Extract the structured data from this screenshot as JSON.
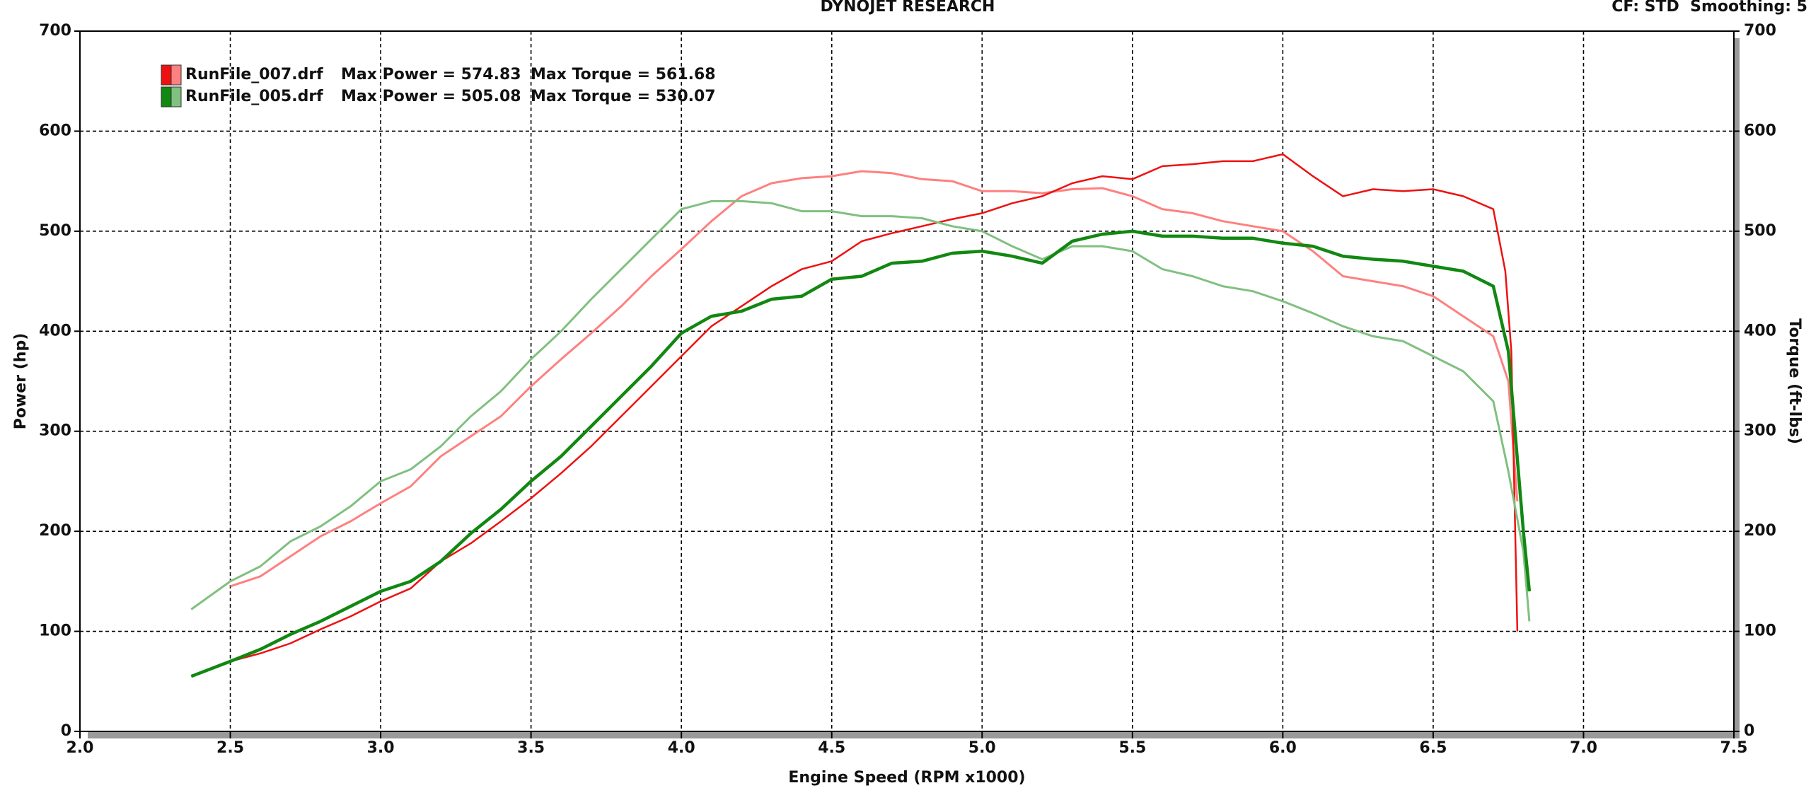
{
  "chart_data": {
    "type": "line",
    "title": "DYNOJET RESEARCH",
    "subtitle": "CF: STD  Smoothing: 5",
    "x_label": "Engine Speed (RPM x1000)",
    "y_label": "Power (hp)",
    "y2_label": "Torque (ft-lbs)",
    "xlim": [
      2.0,
      7.5
    ],
    "xticks": [
      {
        "value": 2,
        "label": "2.0"
      },
      {
        "value": 2.5,
        "label": "2.5"
      },
      {
        "value": 3,
        "label": "3.0"
      },
      {
        "value": 3.5,
        "label": "3.5"
      },
      {
        "value": 4,
        "label": "4.0"
      },
      {
        "value": 4.5,
        "label": "4.5"
      },
      {
        "value": 5,
        "label": "5.0"
      },
      {
        "value": 5.5,
        "label": "5.5"
      },
      {
        "value": 6,
        "label": "6.0"
      },
      {
        "value": 6.5,
        "label": "6.5"
      },
      {
        "value": 7,
        "label": "7.0"
      },
      {
        "value": 7.5,
        "label": "7.5"
      }
    ],
    "ylim": [
      0,
      700
    ],
    "yticks": [
      0,
      100,
      200,
      300,
      400,
      500,
      600,
      700
    ],
    "y2lim": [
      0,
      700
    ],
    "y2ticks": [
      0,
      100,
      200,
      300,
      400,
      500,
      600,
      700
    ],
    "grid": true,
    "legend": [
      {
        "file": "RunFile_007.drf",
        "power_text": "Max Power = 574.83",
        "torque_text": "Max Torque = 561.68",
        "colors": [
          "#ee1111",
          "#ff8080"
        ]
      },
      {
        "file": "RunFile_005.drf",
        "power_text": "Max Power = 505.08",
        "torque_text": "Max Torque = 530.07",
        "colors": [
          "#118811",
          "#80c080"
        ]
      }
    ],
    "series": [
      {
        "name": "RunFile_007.drf",
        "color": "#ff8080",
        "axis": "y2",
        "x": [
          2.5,
          2.6,
          2.7,
          2.8,
          2.9,
          3.0,
          3.1,
          3.2,
          3.3,
          3.4,
          3.5,
          3.6,
          3.7,
          3.8,
          3.9,
          4.0,
          4.1,
          4.2,
          4.3,
          4.4,
          4.5,
          4.6,
          4.7,
          4.8,
          4.9,
          5.0,
          5.1,
          5.2,
          5.3,
          5.4,
          5.5,
          5.6,
          5.7,
          5.8,
          5.9,
          6.0,
          6.1,
          6.2,
          6.3,
          6.4,
          6.5,
          6.6,
          6.7,
          6.75,
          6.78
        ],
        "values": [
          145,
          155,
          175,
          195,
          210,
          228,
          245,
          275,
          295,
          315,
          345,
          372,
          398,
          425,
          455,
          482,
          510,
          535,
          548,
          553,
          555,
          560,
          558,
          552,
          550,
          540,
          540,
          538,
          542,
          543,
          535,
          522,
          518,
          510,
          505,
          500,
          480,
          455,
          450,
          445,
          435,
          415,
          395,
          350,
          230
        ]
      },
      {
        "name": "RunFile_007.drf",
        "color": "#ee1111",
        "axis": "y",
        "x": [
          2.5,
          2.6,
          2.7,
          2.8,
          2.9,
          3.0,
          3.1,
          3.2,
          3.3,
          3.4,
          3.5,
          3.6,
          3.7,
          3.8,
          3.9,
          4.0,
          4.1,
          4.2,
          4.3,
          4.4,
          4.5,
          4.6,
          4.7,
          4.8,
          4.9,
          5.0,
          5.1,
          5.2,
          5.3,
          5.4,
          5.5,
          5.6,
          5.7,
          5.8,
          5.9,
          6.0,
          6.1,
          6.2,
          6.3,
          6.4,
          6.5,
          6.6,
          6.7,
          6.74,
          6.76,
          6.78
        ],
        "values": [
          70,
          78,
          88,
          102,
          115,
          130,
          143,
          170,
          188,
          210,
          233,
          258,
          285,
          315,
          345,
          375,
          405,
          425,
          445,
          462,
          470,
          490,
          498,
          505,
          512,
          518,
          528,
          535,
          548,
          555,
          552,
          565,
          567,
          570,
          570,
          577,
          555,
          535,
          542,
          540,
          542,
          535,
          522,
          460,
          380,
          100
        ]
      },
      {
        "name": "RunFile_005.drf",
        "color": "#80c080",
        "axis": "y2",
        "x": [
          2.37,
          2.5,
          2.6,
          2.7,
          2.8,
          2.9,
          3.0,
          3.1,
          3.2,
          3.3,
          3.4,
          3.5,
          3.6,
          3.7,
          3.8,
          3.9,
          4.0,
          4.1,
          4.2,
          4.3,
          4.4,
          4.5,
          4.6,
          4.7,
          4.8,
          4.9,
          5.0,
          5.1,
          5.2,
          5.3,
          5.4,
          5.5,
          5.6,
          5.7,
          5.8,
          5.9,
          6.0,
          6.1,
          6.2,
          6.3,
          6.4,
          6.5,
          6.6,
          6.7,
          6.75,
          6.8,
          6.82
        ],
        "values": [
          122,
          150,
          165,
          190,
          205,
          225,
          250,
          262,
          285,
          315,
          340,
          372,
          400,
          432,
          462,
          492,
          522,
          530,
          530,
          528,
          520,
          520,
          515,
          515,
          513,
          505,
          500,
          485,
          472,
          485,
          485,
          480,
          462,
          455,
          445,
          440,
          430,
          418,
          405,
          395,
          390,
          375,
          360,
          330,
          260,
          180,
          110
        ]
      },
      {
        "name": "RunFile_005.drf",
        "color": "#118811",
        "axis": "y",
        "x": [
          2.37,
          2.5,
          2.6,
          2.7,
          2.8,
          2.9,
          3.0,
          3.1,
          3.2,
          3.3,
          3.4,
          3.5,
          3.6,
          3.7,
          3.8,
          3.9,
          4.0,
          4.1,
          4.2,
          4.3,
          4.4,
          4.5,
          4.6,
          4.7,
          4.8,
          4.9,
          5.0,
          5.1,
          5.2,
          5.3,
          5.4,
          5.5,
          5.6,
          5.7,
          5.8,
          5.9,
          6.0,
          6.1,
          6.2,
          6.3,
          6.4,
          6.5,
          6.6,
          6.7,
          6.75,
          6.8,
          6.82
        ],
        "values": [
          55,
          70,
          82,
          97,
          110,
          125,
          140,
          150,
          170,
          198,
          222,
          250,
          275,
          305,
          335,
          365,
          398,
          415,
          420,
          432,
          435,
          452,
          455,
          468,
          470,
          478,
          480,
          475,
          468,
          490,
          497,
          500,
          495,
          495,
          493,
          493,
          488,
          485,
          475,
          472,
          470,
          465,
          460,
          445,
          380,
          200,
          140
        ]
      }
    ]
  }
}
